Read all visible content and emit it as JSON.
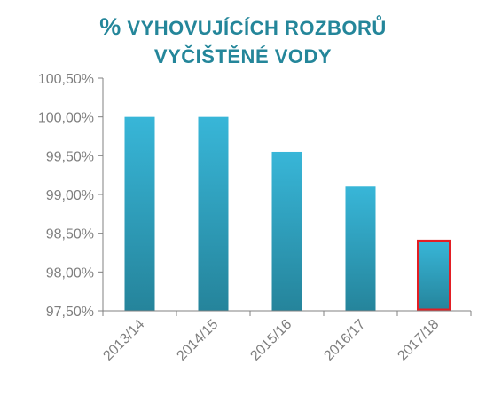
{
  "chart_data": {
    "type": "bar",
    "title_prefix": "%",
    "title_line1": "VYHOVUJÍCÍCH ROZBORŮ",
    "title_line2": "VYČIŠTĚNÉ VODY",
    "categories": [
      "2013/14",
      "2014/15",
      "2015/16",
      "2016/17",
      "2017/18"
    ],
    "values": [
      100.0,
      100.0,
      99.55,
      99.1,
      98.4
    ],
    "ylim": [
      97.5,
      100.5
    ],
    "yticks": [
      97.5,
      98.0,
      98.5,
      99.0,
      99.5,
      100.0,
      100.5
    ],
    "ytick_labels": [
      "97,50%",
      "98,00%",
      "98,50%",
      "99,00%",
      "99,50%",
      "100,00%",
      "100,50%"
    ],
    "highlighted_category": "2017/18",
    "grid": false,
    "legend": "none",
    "colors": {
      "bar_top": "#38b6d8",
      "bar_bottom": "#25849b",
      "highlight_outline": "#e31e24",
      "axis": "#808080",
      "title": "#24869a",
      "tick_text": "#7f7f7f"
    }
  }
}
